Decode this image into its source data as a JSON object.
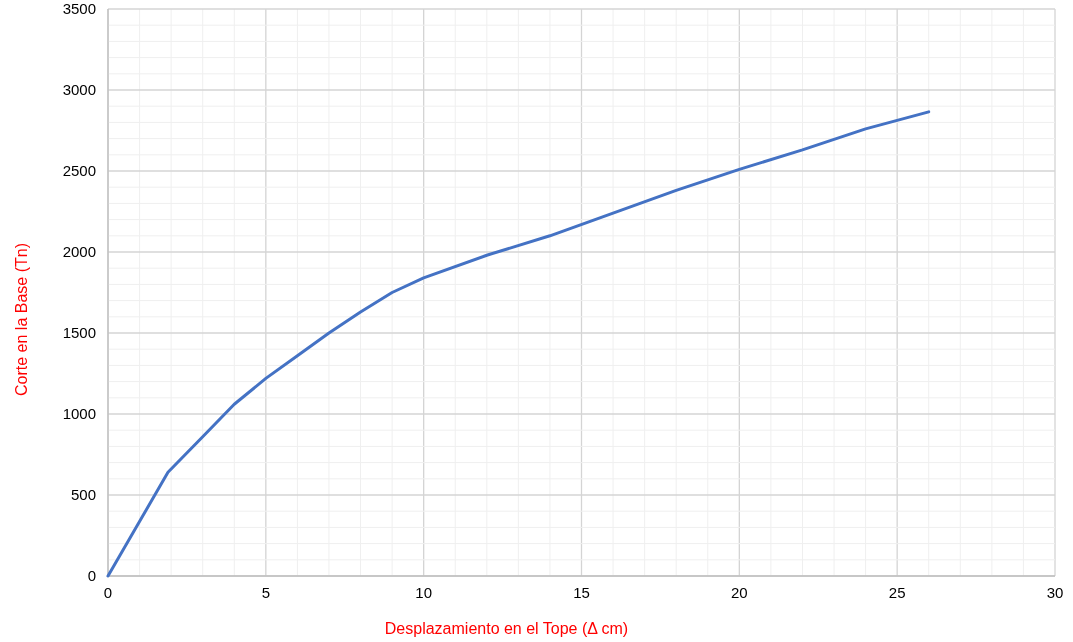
{
  "chart_data": {
    "type": "line",
    "xlabel": "Desplazamiento en el Tope (Δ cm)",
    "ylabel": "Corte en la Base (Tn)",
    "x": [
      0,
      1.9,
      3,
      4,
      5,
      6,
      7,
      8,
      9,
      10,
      12,
      14,
      16,
      18,
      20,
      22,
      24,
      26
    ],
    "series": [
      {
        "color": "#4472c4",
        "values": [
          0,
          640,
          860,
          1060,
          1220,
          1360,
          1500,
          1630,
          1750,
          1840,
          1980,
          2100,
          2240,
          2380,
          2510,
          2630,
          2760,
          2865
        ]
      }
    ],
    "xlim": [
      0,
      30
    ],
    "ylim": [
      0,
      3500
    ],
    "xticks": [
      0,
      {
        "value": 1,
        "label": null
      },
      {
        "value": 2,
        "label": null
      },
      {
        "value": 3,
        "label": null
      },
      {
        "value": 4,
        "label": null
      },
      5,
      {
        "value": 6,
        "label": null
      },
      {
        "value": 7,
        "label": null
      },
      {
        "value": 8,
        "label": null
      },
      {
        "value": 9,
        "label": null
      },
      10,
      {
        "value": 11,
        "label": null
      },
      {
        "value": 12,
        "label": null
      },
      {
        "value": 13,
        "label": null
      },
      {
        "value": 14,
        "label": null
      },
      15,
      {
        "value": 16,
        "label": null
      },
      {
        "value": 17,
        "label": null
      },
      {
        "value": 18,
        "label": null
      },
      {
        "value": 19,
        "label": null
      },
      20,
      {
        "value": 21,
        "label": null
      },
      {
        "value": 22,
        "label": null
      },
      {
        "value": 23,
        "label": null
      },
      {
        "value": 24,
        "label": null
      },
      25,
      {
        "value": 26,
        "label": null
      },
      {
        "value": 27,
        "label": null
      },
      {
        "value": 28,
        "label": null
      },
      {
        "value": 29,
        "label": null
      },
      30
    ],
    "yticks": [
      0,
      {
        "value": 100,
        "label": null
      },
      {
        "value": 200,
        "label": null
      },
      {
        "value": 300,
        "label": null
      },
      {
        "value": 400,
        "label": null
      },
      500,
      {
        "value": 600,
        "label": null
      },
      {
        "value": 700,
        "label": null
      },
      {
        "value": 800,
        "label": null
      },
      {
        "value": 900,
        "label": null
      },
      1000,
      {
        "value": 1100,
        "label": null
      },
      {
        "value": 1200,
        "label": null
      },
      {
        "value": 1300,
        "label": null
      },
      {
        "value": 1400,
        "label": null
      },
      1500,
      {
        "value": 1600,
        "label": null
      },
      {
        "value": 1700,
        "label": null
      },
      {
        "value": 1800,
        "label": null
      },
      {
        "value": 1900,
        "label": null
      },
      2000,
      {
        "value": 2100,
        "label": null
      },
      {
        "value": 2200,
        "label": null
      },
      {
        "value": 2300,
        "label": null
      },
      {
        "value": 2400,
        "label": null
      },
      2500,
      {
        "value": 2600,
        "label": null
      },
      {
        "value": 2700,
        "label": null
      },
      {
        "value": 2800,
        "label": null
      },
      {
        "value": 2900,
        "label": null
      },
      3000,
      {
        "value": 3100,
        "label": null
      },
      {
        "value": 3200,
        "label": null
      },
      {
        "value": 3300,
        "label": null
      },
      {
        "value": 3400,
        "label": null
      },
      3500
    ],
    "grid": true,
    "marker": "none",
    "line_style": "solid"
  }
}
